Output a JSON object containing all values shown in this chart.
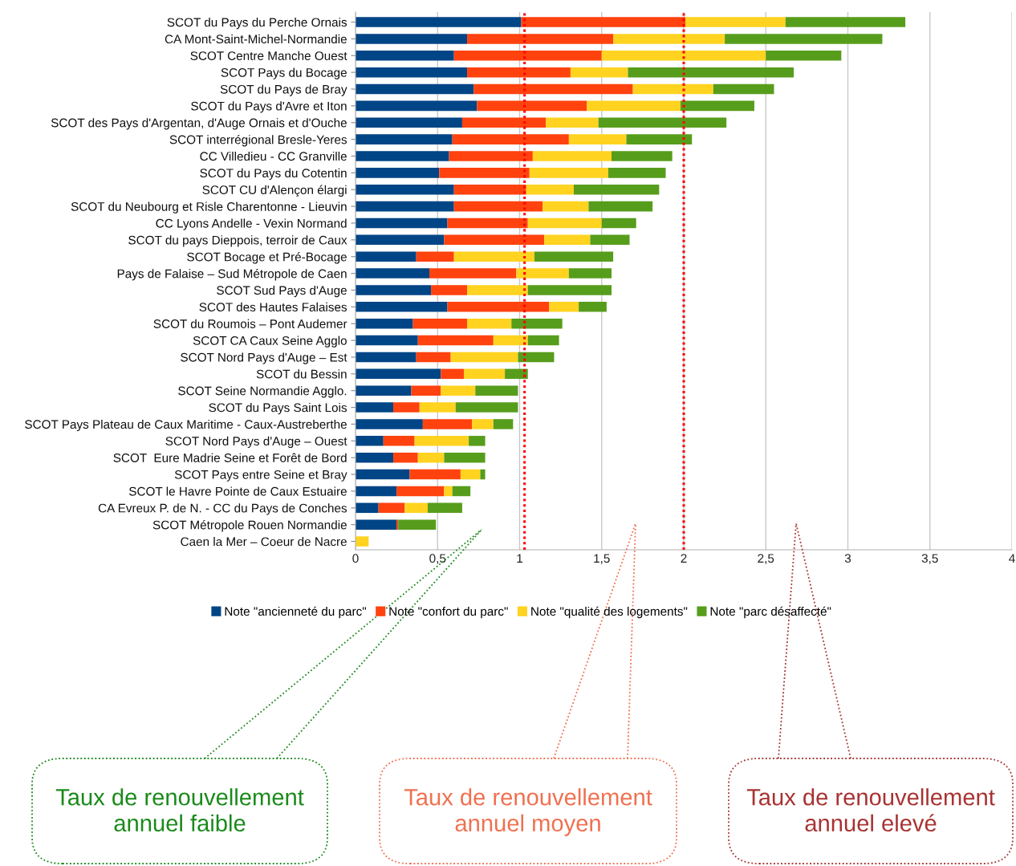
{
  "chart_data": {
    "type": "bar",
    "orientation": "horizontal",
    "stacked": true,
    "categories": [
      "SCOT du Pays du Perche Ornais",
      "CA Mont-Saint-Michel-Normandie",
      "SCOT Centre Manche Ouest",
      "SCOT Pays du Bocage",
      "SCOT du Pays de Bray",
      "SCOT du Pays d'Avre et Iton",
      "SCOT des Pays d'Argentan, d'Auge Ornais et d'Ouche",
      "SCOT interrégional Bresle-Yeres",
      "CC Villedieu - CC Granville",
      "SCOT du Pays du Cotentin",
      "SCOT CU d'Alençon élargi",
      "SCOT du Neubourg et Risle Charentonne - Lieuvin",
      "CC Lyons Andelle - Vexin Normand",
      "SCOT du pays Dieppois, terroir de Caux",
      "SCOT Bocage et Pré-Bocage",
      "Pays de Falaise – Sud Métropole de Caen",
      "SCOT Sud Pays d'Auge",
      "SCOT des Hautes Falaises",
      "SCOT du Roumois – Pont Audemer",
      "SCOT CA Caux Seine Agglo",
      "SCOT Nord Pays d'Auge – Est",
      "SCOT du Bessin",
      "SCOT Seine Normandie Agglo.",
      "SCOT du Pays Saint Lois",
      "SCOT Pays Plateau de Caux Maritime - Caux-Austreberthe",
      "SCOT Nord Pays d'Auge – Ouest",
      "SCOT  Eure Madrie Seine et Forêt de Bord",
      "SCOT Pays entre Seine et Bray",
      "SCOT le Havre Pointe de Caux Estuaire",
      "CA Evreux P. de N. - CC du Pays de Conches",
      "SCOT Métropole Rouen Normandie",
      "Caen la Mer – Coeur de Nacre"
    ],
    "series": [
      {
        "name": "Note \"ancienneté du parc\"",
        "color": "#004586",
        "values": [
          1.01,
          0.68,
          0.6,
          0.68,
          0.72,
          0.74,
          0.65,
          0.59,
          0.57,
          0.51,
          0.6,
          0.6,
          0.56,
          0.54,
          0.37,
          0.45,
          0.46,
          0.56,
          0.35,
          0.38,
          0.37,
          0.52,
          0.34,
          0.23,
          0.41,
          0.17,
          0.23,
          0.33,
          0.25,
          0.14,
          0.25,
          0
        ]
      },
      {
        "name": "Note \"confort du parc\"",
        "color": "#ff420e",
        "values": [
          1.0,
          0.89,
          0.9,
          0.63,
          0.97,
          0.67,
          0.51,
          0.71,
          0.51,
          0.55,
          0.44,
          0.54,
          0.49,
          0.61,
          0.23,
          0.53,
          0.22,
          0.62,
          0.33,
          0.46,
          0.21,
          0.14,
          0.18,
          0.16,
          0.3,
          0.19,
          0.15,
          0.31,
          0.29,
          0.16,
          0.01,
          0
        ]
      },
      {
        "name": "Note \"qualité des logements\"",
        "color": "#ffd320",
        "values": [
          0.61,
          0.68,
          1.0,
          0.35,
          0.49,
          0.57,
          0.32,
          0.35,
          0.48,
          0.48,
          0.29,
          0.28,
          0.45,
          0.28,
          0.49,
          0.32,
          0.37,
          0.18,
          0.27,
          0.21,
          0.41,
          0.25,
          0.21,
          0.22,
          0.13,
          0.33,
          0.16,
          0.12,
          0.05,
          0.14,
          0,
          0.08
        ]
      },
      {
        "name": "Note \"parc désaffecté\"",
        "color": "#579d1c",
        "values": [
          0.73,
          0.96,
          0.46,
          1.01,
          0.37,
          0.45,
          0.78,
          0.4,
          0.37,
          0.35,
          0.52,
          0.39,
          0.21,
          0.24,
          0.48,
          0.26,
          0.51,
          0.17,
          0.31,
          0.19,
          0.22,
          0.14,
          0.26,
          0.38,
          0.12,
          0.1,
          0.25,
          0.03,
          0.11,
          0.21,
          0.23,
          0
        ]
      }
    ],
    "xlim": [
      0,
      4
    ],
    "xticks": [
      0,
      {
        "value": 0.5,
        "label": "0,5"
      },
      1,
      {
        "value": 1.5,
        "label": "1,5"
      },
      2,
      {
        "value": 2.5,
        "label": "2,5"
      },
      3,
      {
        "value": 3.5,
        "label": "3,5"
      },
      4
    ],
    "grid": "x",
    "legend": "bottom",
    "ref_lines": [
      {
        "axis": "x",
        "value": 1.03,
        "color": "#ff0000",
        "line_style": "dotted"
      },
      {
        "axis": "x",
        "value": 2,
        "color": "#ff0000",
        "line_style": "dotted"
      }
    ],
    "annotations": [
      "Taux de renouvellement\nannuel faible",
      "Taux de renouvellement\nannuel moyen",
      "Taux de renouvellement\nannuel elevé"
    ]
  }
}
